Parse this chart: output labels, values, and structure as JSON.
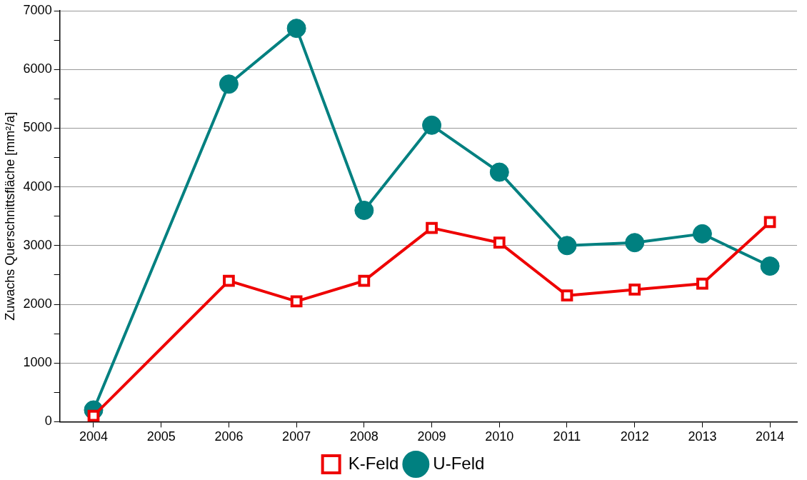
{
  "chart_data": {
    "type": "line",
    "ylabel": "Zuwachs Querschnittsfläche [mm²/a]",
    "x": [
      2004,
      2006,
      2007,
      2008,
      2009,
      2010,
      2011,
      2012,
      2013,
      2014
    ],
    "xlim": [
      2003.5,
      2014.4
    ],
    "xticks": [
      2004,
      2005,
      2006,
      2007,
      2008,
      2009,
      2010,
      2011,
      2012,
      2013,
      2014
    ],
    "ylim": [
      0,
      7000
    ],
    "yticks": [
      0,
      {
        "value": 500,
        "label": null
      },
      1000,
      {
        "value": 1500,
        "label": null
      },
      2000,
      {
        "value": 2500,
        "label": null
      },
      3000,
      {
        "value": 3500,
        "label": null
      },
      4000,
      {
        "value": 4500,
        "label": null
      },
      5000,
      {
        "value": 5500,
        "label": null
      },
      6000,
      {
        "value": 6500,
        "label": null
      },
      7000
    ],
    "grid": "y",
    "legend": "bottom",
    "line_style": "solid",
    "series": [
      {
        "name": "K-Feld",
        "color": "#ee0000",
        "marker": "square",
        "values": [
          100,
          2400,
          2050,
          2400,
          3300,
          3050,
          2150,
          2250,
          2350,
          3400
        ]
      },
      {
        "name": "U-Feld",
        "color": "#008080",
        "marker": "circle",
        "values": [
          200,
          5750,
          6700,
          3600,
          5050,
          4250,
          3000,
          3050,
          3200,
          2650
        ]
      }
    ]
  }
}
